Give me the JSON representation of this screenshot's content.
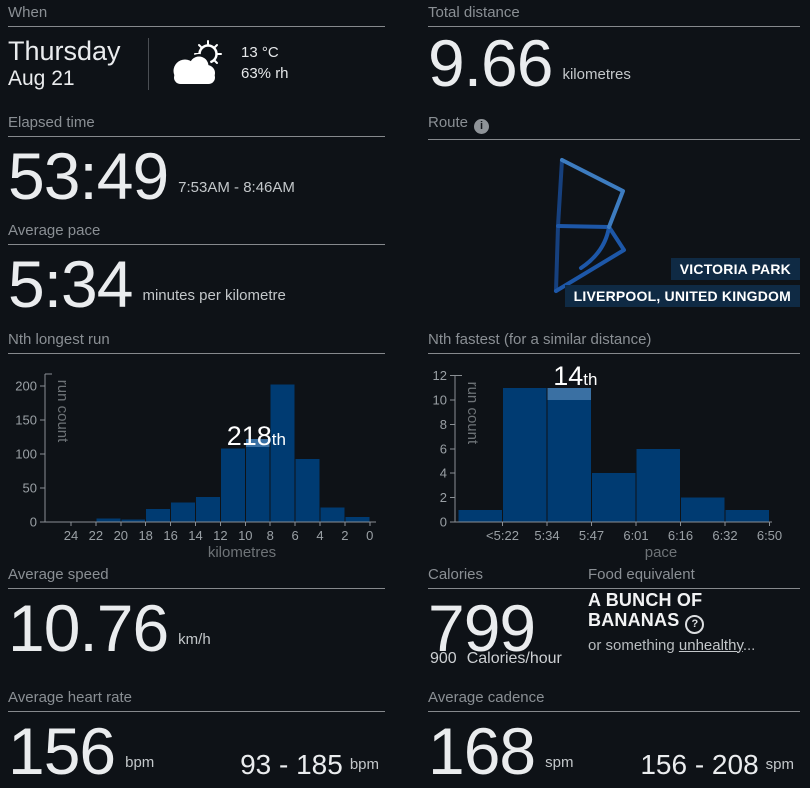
{
  "colors": {
    "background": "#0e1217",
    "bar": "#003b72",
    "bar_highlight": "#3a70a3",
    "axis": "#8a8f94",
    "tick_text": "#9aa0a5",
    "axis_label": "#6e7377",
    "annotation": "#ffffff",
    "geo_box_bg": "#0f2a44",
    "route_dark": "#16407e",
    "route_mid": "#1d57a8",
    "route_light": "#3d7cc0"
  },
  "when": {
    "label": "When",
    "day": "Thursday",
    "date": "Aug 21",
    "temperature": "13 °C",
    "humidity": "63% rh",
    "weather_icon": "partly-cloudy"
  },
  "total_distance": {
    "label": "Total distance",
    "value": "9.66",
    "unit": "kilometres"
  },
  "elapsed_time": {
    "label": "Elapsed time",
    "value": "53:49",
    "time_range": "7:53AM - 8:46AM"
  },
  "average_pace": {
    "label": "Average pace",
    "value": "5:34",
    "unit": "minutes per kilometre"
  },
  "route": {
    "label": "Route",
    "info_icon": "i",
    "park": "VICTORIA PARK",
    "city": "LIVERPOOL, UNITED KINGDOM"
  },
  "average_speed": {
    "label": "Average speed",
    "value": "10.76",
    "unit": "km/h"
  },
  "calories": {
    "label": "Calories",
    "value": "799",
    "rate_value": "900",
    "rate_unit": "Calories/hour"
  },
  "food": {
    "label": "Food equivalent",
    "line1": "A BUNCH OF",
    "line2": "BANANAS",
    "help_icon": "?",
    "note_prefix": "or something ",
    "note_link": "unhealthy",
    "note_suffix": "..."
  },
  "heart_rate": {
    "label": "Average heart rate",
    "value": "156",
    "unit": "bpm",
    "range": "93 - 185",
    "range_unit": "bpm"
  },
  "cadence": {
    "label": "Average cadence",
    "value": "168",
    "unit": "spm",
    "range": "156 - 208",
    "range_unit": "spm"
  },
  "chart_data": [
    {
      "type": "bar",
      "title": "Nth longest run",
      "xlabel": "kilometres",
      "ylabel": "run count",
      "yticks": [
        0,
        50,
        100,
        150,
        200
      ],
      "ylim": [
        0,
        218
      ],
      "edge_labels": [
        "24",
        "22",
        "20",
        "18",
        "16",
        "14",
        "12",
        "10",
        "8",
        "6",
        "4",
        "2",
        "0"
      ],
      "values": [
        0,
        5,
        4,
        19,
        29,
        37,
        108,
        122,
        202,
        93,
        21,
        7
      ],
      "highlight": {
        "index": 7,
        "cap": 12,
        "label": "218",
        "suffix": "th"
      }
    },
    {
      "type": "bar",
      "title": "Nth fastest (for a similar distance)",
      "xlabel": "pace",
      "ylabel": "run count",
      "yticks": [
        0,
        2,
        4,
        6,
        8,
        10,
        12
      ],
      "ylim": [
        0,
        12
      ],
      "edge_labels": [
        "",
        "<5:22",
        "5:34",
        "5:47",
        "6:01",
        "6:16",
        "6:32",
        "6:50"
      ],
      "values": [
        1,
        11,
        11,
        4,
        6,
        2,
        1
      ],
      "highlight": {
        "index": 2,
        "cap": 1,
        "label": "14",
        "suffix": "th"
      }
    }
  ]
}
